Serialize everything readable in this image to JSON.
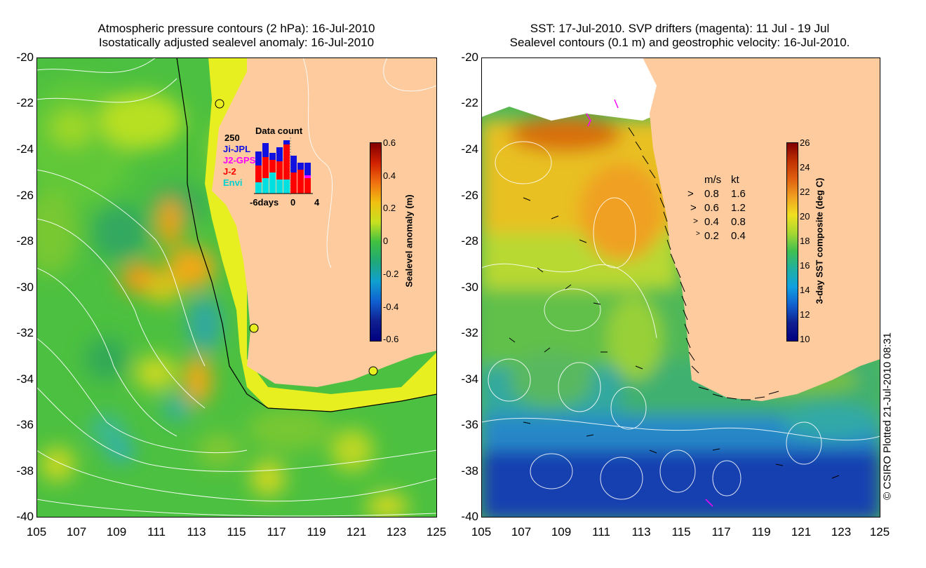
{
  "left_panel": {
    "title_line1": "Atmospheric pressure contours (2 hPa): 16-Jul-2010",
    "title_line2": "Isostatically adjusted sealevel anomaly: 16-Jul-2010",
    "colorbar": {
      "label": "Sealevel anomaly (m)",
      "ticks": [
        "0.6",
        "0.4",
        "0.2",
        "0",
        "-0.2",
        "-0.4",
        "-0.6"
      ],
      "range": [
        -0.6,
        0.6
      ]
    },
    "inset": {
      "title": "Data count",
      "max_label": "250",
      "x_ticks": [
        "-6days",
        "0",
        "4"
      ],
      "missions": [
        {
          "name": "Ji-JPL",
          "color": "#1010e0"
        },
        {
          "name": "J2-GPS",
          "color": "#ff00ff"
        },
        {
          "name": "J-2",
          "color": "#ff0000"
        },
        {
          "name": "Envi",
          "color": "#00e0e0"
        }
      ]
    }
  },
  "right_panel": {
    "title_line1": "SST: 17-Jul-2010. SVP drifters (magenta): 11 Jul - 19 Jul",
    "title_line2": "Sealevel contours (0.1 m) and geostrophic velocity: 16-Jul-2010.",
    "colorbar": {
      "label": "3-day SST composite (deg C)",
      "ticks": [
        "26",
        "24",
        "22",
        "20",
        "18",
        "16",
        "14",
        "12",
        "10"
      ],
      "range": [
        10,
        26
      ]
    },
    "velocity_legend": {
      "header_ms": "m/s",
      "header_kt": "kt",
      "rows": [
        {
          "ms": "0.8",
          "kt": "1.6"
        },
        {
          "ms": "0.6",
          "kt": "1.2"
        },
        {
          "ms": "0.4",
          "kt": "0.8"
        },
        {
          "ms": "0.2",
          "kt": "0.4"
        }
      ]
    }
  },
  "axes": {
    "lat_ticks": [
      "-20",
      "-22",
      "-24",
      "-26",
      "-28",
      "-30",
      "-32",
      "-34",
      "-36",
      "-38",
      "-40"
    ],
    "lon_ticks": [
      "105",
      "107",
      "109",
      "111",
      "113",
      "115",
      "117",
      "119",
      "121",
      "123",
      "125"
    ]
  },
  "copyright": "© CSIRO Plotted 21-Jul-2010 08:31",
  "colors": {
    "land": "#fdcb9e",
    "sla_zero": "#20b040",
    "sla_pos": "#f0a010",
    "sst_warm": "#e8a020",
    "sst_cold": "#1030c0"
  }
}
